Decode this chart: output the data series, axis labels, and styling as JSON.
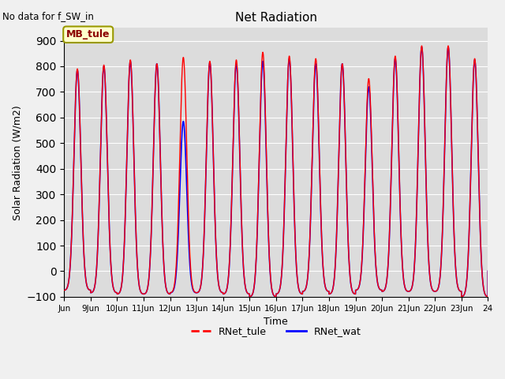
{
  "title": "Net Radiation",
  "xlabel": "Time",
  "ylabel": "Solar Radiation (W/m2)",
  "annotation_text": "No data for f_SW_in",
  "legend_label1": "RNet_tule",
  "legend_label2": "RNet_wat",
  "legend_box_label": "MB_tule",
  "color1": "#FF0000",
  "color2": "#0000FF",
  "ylim": [
    -100,
    950
  ],
  "yticks": [
    -100,
    0,
    100,
    200,
    300,
    400,
    500,
    600,
    700,
    800,
    900
  ],
  "bg_color": "#dcdcdc",
  "n_days": 16,
  "sigma": 0.13,
  "peaks_tule": [
    715,
    720,
    735,
    720,
    750,
    735,
    735,
    755,
    750,
    750,
    720,
    677,
    760,
    800,
    800,
    730
  ],
  "peaks_wat": [
    710,
    715,
    730,
    720,
    500,
    730,
    720,
    720,
    740,
    730,
    720,
    645,
    750,
    795,
    795,
    725
  ],
  "night_val": -75,
  "figsize": [
    6.4,
    4.8
  ],
  "dpi": 100
}
